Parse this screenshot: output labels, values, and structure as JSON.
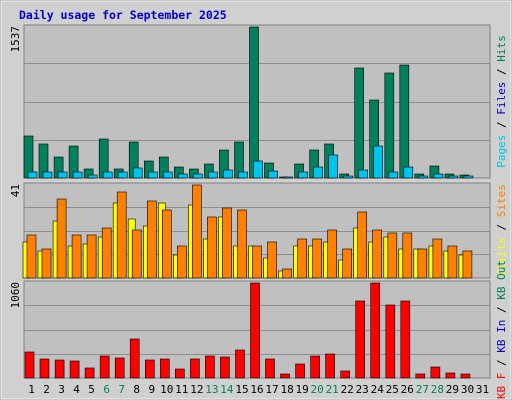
{
  "chart_data": {
    "type": "bar",
    "title": "Daily usage for September 2025",
    "days": [
      "1",
      "2",
      "3",
      "4",
      "5",
      "6",
      "7",
      "8",
      "9",
      "10",
      "11",
      "12",
      "13",
      "14",
      "15",
      "16",
      "17",
      "18",
      "19",
      "20",
      "21",
      "22",
      "23",
      "24",
      "25",
      "26",
      "27",
      "28",
      "29",
      "30",
      "31"
    ],
    "weekend_days": [
      "6",
      "7",
      "13",
      "14",
      "20",
      "21",
      "27",
      "28"
    ],
    "colors": {
      "hits": "#00805c",
      "files": "#00c4f0",
      "pages": "#00c4f0",
      "visits": "#ffff00",
      "sites": "#ff8000",
      "kbin": "#ff0000",
      "kbout": "#ff0000",
      "background": "#c0c0c0",
      "frame": "#d0d0d0",
      "grid": "#8e8e8e",
      "weekday_text": "#000000",
      "weekend_text": "#00805c",
      "title_text": "#0000cc"
    },
    "panels": [
      {
        "id": "hits",
        "ymax_label": "1537",
        "ymax": 1537,
        "side_label": [
          {
            "text": "Pages",
            "color": "#00c4f0"
          },
          {
            "text": " / ",
            "color": "#000000"
          },
          {
            "text": "Files",
            "color": "#0000cc"
          },
          {
            "text": " / ",
            "color": "#000000"
          },
          {
            "text": "Hits",
            "color": "#00805c"
          }
        ],
        "series": [
          {
            "name": "Hits",
            "color": "#00805c",
            "values": [
              430,
              350,
              210,
              330,
              90,
              400,
              90,
              370,
              170,
              210,
              110,
              90,
              140,
              280,
              370,
              1537,
              150,
              10,
              140,
              280,
              350,
              40,
              1120,
              790,
              1070,
              1150,
              40,
              120,
              40,
              30,
              0
            ]
          },
          {
            "name": "Files",
            "color": "#00c4f0",
            "values": [
              60,
              60,
              60,
              60,
              30,
              60,
              60,
              100,
              60,
              60,
              40,
              40,
              60,
              80,
              60,
              170,
              70,
              10,
              60,
              110,
              230,
              20,
              80,
              330,
              60,
              110,
              20,
              40,
              20,
              20,
              0
            ]
          }
        ]
      },
      {
        "id": "visits",
        "ymax_label": "41",
        "ymax": 41,
        "side_label": [
          {
            "text": "Visits",
            "color": "#ffff00"
          },
          {
            "text": " / ",
            "color": "#000000"
          },
          {
            "text": "Sites",
            "color": "#ff8000"
          }
        ],
        "series": [
          {
            "name": "Visits",
            "color": "#ffff00",
            "values": [
              16,
              12,
              25,
              14,
              15,
              18,
              33,
              26,
              23,
              33,
              10,
              32,
              17,
              27,
              14,
              14,
              9,
              3,
              14,
              14,
              16,
              8,
              22,
              16,
              18,
              13,
              13,
              14,
              12,
              10,
              0
            ]
          },
          {
            "name": "Sites",
            "color": "#ff8000",
            "values": [
              19,
              13,
              35,
              19,
              19,
              22,
              38,
              21,
              34,
              30,
              14,
              41,
              27,
              31,
              30,
              14,
              16,
              4,
              17,
              17,
              21,
              13,
              29,
              21,
              20,
              20,
              13,
              17,
              14,
              12,
              0
            ]
          }
        ]
      },
      {
        "id": "kb",
        "ymax_label": "1060",
        "ymax": 1060,
        "side_label": [
          {
            "text": "KB F",
            "color": "#ff0000"
          },
          {
            "text": " / ",
            "color": "#000000"
          },
          {
            "text": "KB In",
            "color": "#0000cc"
          },
          {
            "text": " / ",
            "color": "#000000"
          },
          {
            "text": "KB Out",
            "color": "#00805c"
          }
        ],
        "series": [
          {
            "name": "KB F",
            "color": "#ff0000",
            "values": [
              290,
              210,
              200,
              190,
              110,
              240,
              220,
              440,
              200,
              210,
              100,
              210,
              240,
              230,
              310,
              1060,
              210,
              40,
              160,
              240,
              270,
              80,
              860,
              1060,
              810,
              860,
              50,
              120,
              60,
              50,
              0
            ]
          }
        ]
      }
    ]
  }
}
